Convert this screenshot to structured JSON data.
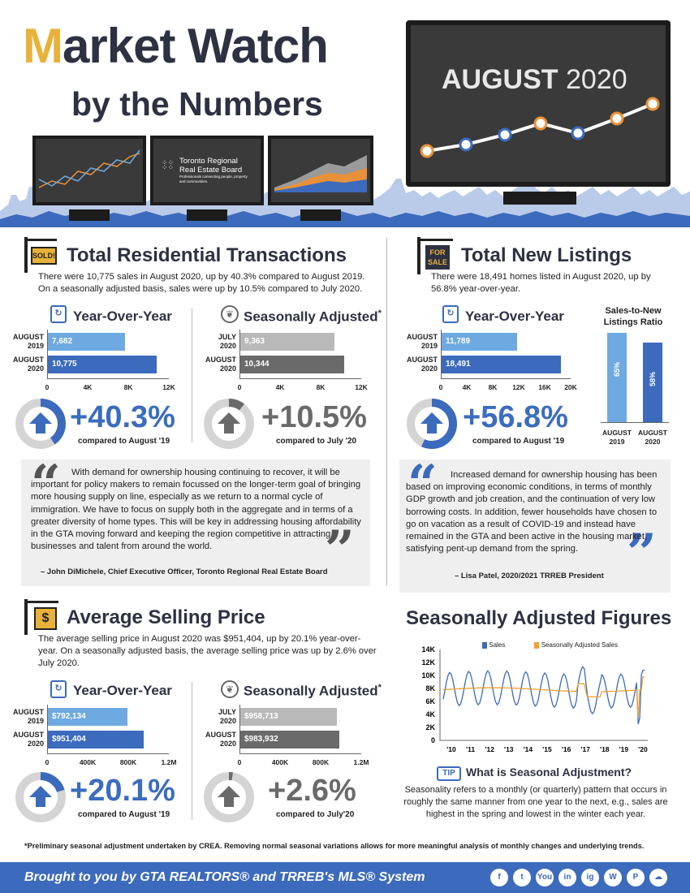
{
  "header": {
    "title_m": "M",
    "title_rest": "arket Watch",
    "subtitle": "by the Numbers",
    "month_label": "AUGUST",
    "year_label": "2020",
    "monitor_logo_line1": "Toronto Regional",
    "monitor_logo_line2": "Real Estate Board",
    "monitor_logo_tagline": "Professionals connecting people, property and communities."
  },
  "transactions": {
    "sign": "SOLD!",
    "title": "Total Residential Transactions",
    "text": "There were 10,775 sales in August 2020, up by 40.3% compared to August 2019. On a seasonally adjusted basis, sales were up by 10.5% compared to July 2020.",
    "yoy": {
      "title": "Year-Over-Year",
      "bars": [
        {
          "label1": "AUGUST",
          "label2": "2019",
          "value_label": "7,682",
          "value": 7682
        },
        {
          "label1": "AUGUST",
          "label2": "2020",
          "value_label": "10,775",
          "value": 10775
        }
      ],
      "ticks": [
        "0",
        "4K",
        "8K",
        "12K"
      ],
      "max": 12000,
      "pct": "+40.3%",
      "compare": "compared to August '19",
      "ring_fraction": 0.403
    },
    "sa": {
      "title": "Seasonally Adjusted",
      "title_mark": "*",
      "bars": [
        {
          "label1": "JULY",
          "label2": "2020",
          "value_label": "9,363",
          "value": 9363
        },
        {
          "label1": "AUGUST",
          "label2": "2020",
          "value_label": "10,344",
          "value": 10344
        }
      ],
      "ticks": [
        "0",
        "4K",
        "8K",
        "12K"
      ],
      "max": 12000,
      "pct": "+10.5%",
      "compare": "compared to July '20",
      "ring_fraction": 0.105
    },
    "quote": {
      "text": "With demand for ownership housing continuing to recover, it will be important for policy makers to remain focussed on the longer-term goal of bringing more housing supply on line, especially as we return to a normal cycle of immigration. We have to focus on supply both in the aggregate and in terms of a greater diversity of home types. This will be key in addressing housing affordability in the GTA moving forward and keeping the region competitive in attracting businesses and talent from around the world.",
      "attribution": "– John DiMichele, Chief Executive Officer, Toronto Regional Real Estate Board"
    }
  },
  "listings": {
    "sign_line1": "FOR",
    "sign_line2": "SALE",
    "title": "Total New Listings",
    "text": "There were 18,491 homes listed in August 2020, up by 56.8% year-over-year.",
    "yoy": {
      "title": "Year-Over-Year",
      "bars": [
        {
          "label1": "AUGUST",
          "label2": "2019",
          "value_label": "11,789",
          "value": 11789
        },
        {
          "label1": "AUGUST",
          "label2": "2020",
          "value_label": "18,491",
          "value": 18491
        }
      ],
      "ticks": [
        "0",
        "4K",
        "8K",
        "12K",
        "16K",
        "20K"
      ],
      "max": 20000,
      "pct": "+56.8%",
      "compare": "compared to August '19",
      "ring_fraction": 0.568
    },
    "ratio": {
      "title": "Sales-to-New Listings Ratio",
      "bars": [
        {
          "value_label": "65%",
          "value": 65,
          "label1": "AUGUST",
          "label2": "2019"
        },
        {
          "value_label": "58%",
          "value": 58,
          "label1": "AUGUST",
          "label2": "2020"
        }
      ]
    },
    "quote": {
      "text": "Increased demand for ownership housing has been based on improving economic conditions, in terms of monthly GDP growth and job creation, and the continuation of very low borrowing costs. In addition, fewer households have chosen to go on vacation as a result of COVID-19 and instead have remained in the GTA and been active in the housing market, satisfying pent-up demand from the spring.",
      "attribution": "– Lisa Patel, 2020/2021 TRREB President"
    }
  },
  "price": {
    "sign": "$",
    "title": "Average Selling Price",
    "text": "The average selling price in August 2020 was $951,404, up by 20.1% year-over-year. On a seasonally adjusted basis, the average selling price was up by 2.6% over July 2020.",
    "yoy": {
      "title": "Year-Over-Year",
      "bars": [
        {
          "label1": "AUGUST",
          "label2": "2019",
          "value_label": "$792,134",
          "value": 792134
        },
        {
          "label1": "AUGUST",
          "label2": "2020",
          "value_label": "$951,404",
          "value": 951404
        }
      ],
      "ticks": [
        "0",
        "400K",
        "800K",
        "1.2M"
      ],
      "max": 1200000,
      "pct": "+20.1%",
      "compare": "compared to August '19",
      "ring_fraction": 0.201
    },
    "sa": {
      "title": "Seasonally Adjusted",
      "title_mark": "*",
      "bars": [
        {
          "label1": "JULY",
          "label2": "2020",
          "value_label": "$958,713",
          "value": 958713
        },
        {
          "label1": "AUGUST",
          "label2": "2020",
          "value_label": "$983,932",
          "value": 983932
        }
      ],
      "ticks": [
        "0",
        "400K",
        "800K",
        "1.2M"
      ],
      "max": 1200000,
      "pct": "+2.6%",
      "compare": "compared to July'20",
      "ring_fraction": 0.026
    }
  },
  "figures": {
    "title": "Seasonally Adjusted Figures",
    "legend_sales": "Sales",
    "legend_sa": "Seasonally Adjusted Sales",
    "color_sales": "#3c6abc",
    "color_sa": "#f0a030",
    "y_ticks": [
      "0",
      "2K",
      "4K",
      "6K",
      "8K",
      "10K",
      "12K",
      "14K"
    ],
    "x_ticks": [
      "'10",
      "'11",
      "'12",
      "'13",
      "'14",
      "'15",
      "'16",
      "'17",
      "'18",
      "'19",
      "'20"
    ]
  },
  "tip": {
    "badge": "TIP",
    "title": "What is Seasonal Adjustment?",
    "text": "Seasonality refers to a monthly (or quarterly) pattern that occurs in roughly the same manner from one year to the next, e.g., sales are highest in the spring and lowest in the winter each year."
  },
  "footnote": "*Preliminary seasonal adjustment undertaken by CREA. Removing normal seasonal variations allows for more meaningful analysis of monthly changes and underlying trends.",
  "footer": {
    "text": "Brought to you by GTA REALTORS® and TRREB's MLS® System",
    "social": [
      "f",
      "t",
      "You",
      "in",
      "ig",
      "W",
      "P",
      "☁"
    ]
  },
  "colors": {
    "navy": "#2d3142",
    "blue": "#3c6abc",
    "light_blue": "#6fa9e1",
    "gold": "#e8b23a"
  }
}
